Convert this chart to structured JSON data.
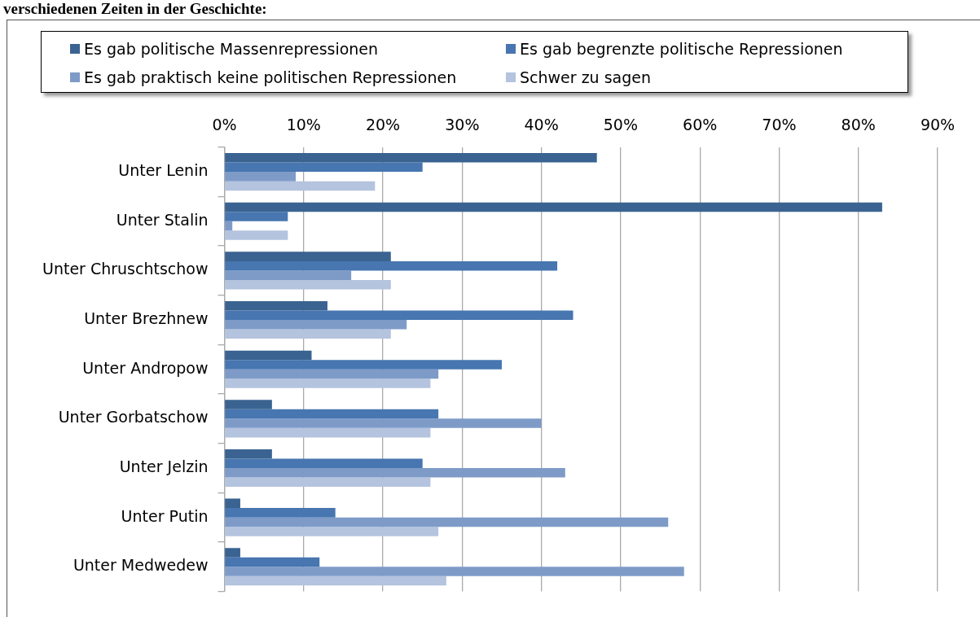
{
  "chart_data": {
    "type": "bar",
    "orientation": "horizontal",
    "title": "verschiedenen Zeiten in der Geschichte:",
    "categories": [
      "Unter Lenin",
      "Unter Stalin",
      "Unter Chruschtschow",
      "Unter Brezhnew",
      "Unter Andropow",
      "Unter Gorbatschow",
      "Unter Jelzin",
      "Unter Putin",
      "Unter Medwedew"
    ],
    "series": [
      {
        "name": "Es gab politische Massenrepressionen",
        "color": "#3a6391",
        "values": [
          47,
          83,
          21,
          13,
          11,
          6,
          6,
          2,
          2
        ]
      },
      {
        "name": "Es gab begrenzte politische Repressionen",
        "color": "#4776b0",
        "values": [
          25,
          8,
          42,
          44,
          35,
          27,
          25,
          14,
          12
        ]
      },
      {
        "name": "Es gab praktisch keine politischen Repressionen",
        "color": "#7e9bc8",
        "values": [
          9,
          1,
          16,
          23,
          27,
          40,
          43,
          56,
          58
        ]
      },
      {
        "name": "Schwer zu sagen",
        "color": "#b4c3de",
        "values": [
          19,
          8,
          21,
          21,
          26,
          26,
          26,
          27,
          28
        ]
      }
    ],
    "xlim": [
      0,
      90
    ],
    "xticks": [
      {
        "value": 0,
        "label": "0%"
      },
      {
        "value": 10,
        "label": "10%"
      },
      {
        "value": 20,
        "label": "20%"
      },
      {
        "value": 30,
        "label": "30%"
      },
      {
        "value": 40,
        "label": "40%"
      },
      {
        "value": 50,
        "label": "50%"
      },
      {
        "value": 60,
        "label": "60%"
      },
      {
        "value": 70,
        "label": "70%"
      },
      {
        "value": 80,
        "label": "80%"
      },
      {
        "value": 90,
        "label": "90%"
      }
    ],
    "grid": "x",
    "legend": "top"
  }
}
